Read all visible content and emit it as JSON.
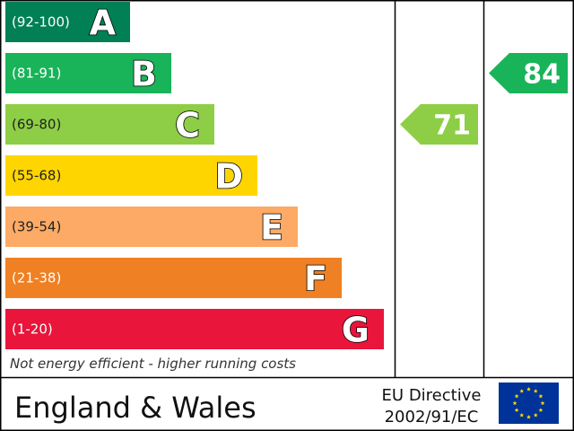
{
  "chart_data": {
    "type": "bar",
    "bands": [
      {
        "letter": "A",
        "range": "(92-100)",
        "min": 92,
        "max": 100,
        "color": "#008054"
      },
      {
        "letter": "B",
        "range": "(81-91)",
        "min": 81,
        "max": 91,
        "color": "#19b459"
      },
      {
        "letter": "C",
        "range": "(69-80)",
        "min": 69,
        "max": 80,
        "color": "#8dce46"
      },
      {
        "letter": "D",
        "range": "(55-68)",
        "min": 55,
        "max": 68,
        "color": "#ffd500"
      },
      {
        "letter": "E",
        "range": "(39-54)",
        "min": 39,
        "max": 54,
        "color": "#fcaa65"
      },
      {
        "letter": "F",
        "range": "(21-38)",
        "min": 21,
        "max": 38,
        "color": "#ef8023"
      },
      {
        "letter": "G",
        "range": "(1-20)",
        "min": 1,
        "max": 20,
        "color": "#e9153b"
      }
    ],
    "ratings": [
      {
        "column": "current",
        "value": 71,
        "label": "71",
        "band": "C",
        "color": "#8dce46"
      },
      {
        "column": "potential",
        "value": 84,
        "label": "84",
        "band": "B",
        "color": "#19b459"
      }
    ],
    "caption": "Not energy efficient - higher running costs",
    "footer": {
      "region": "England & Wales",
      "directive_line1": "EU Directive",
      "directive_line2": "2002/91/EC"
    },
    "colors": {
      "border": "#000000",
      "flag_background": "#003399",
      "flag_stars": "#ffdd00",
      "range_text_light": "#ffffff",
      "range_text_dark": "#222222"
    }
  }
}
